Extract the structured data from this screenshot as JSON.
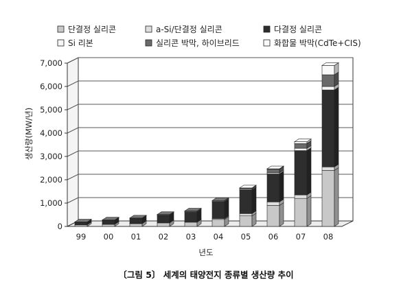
{
  "chart_data": {
    "type": "bar",
    "stacked": true,
    "three_d": true,
    "categories": [
      "99",
      "00",
      "01",
      "02",
      "03",
      "04",
      "05",
      "06",
      "07",
      "08"
    ],
    "series": [
      {
        "name": "단결정 실리콘",
        "color": "#c8c8c8",
        "values": [
          70,
          90,
          120,
          150,
          180,
          300,
          450,
          900,
          1200,
          2400
        ]
      },
      {
        "name": "a-Si/단결정 실리콘",
        "color": "#dedede",
        "values": [
          5,
          10,
          10,
          20,
          20,
          40,
          100,
          150,
          150,
          150
        ]
      },
      {
        "name": "다결정 실리콘",
        "color": "#2e2e2e",
        "values": [
          100,
          150,
          200,
          300,
          400,
          700,
          1000,
          1200,
          1900,
          3300
        ]
      },
      {
        "name": "Si 리본",
        "color": "#f5f5f5",
        "values": [
          5,
          5,
          10,
          10,
          20,
          20,
          30,
          50,
          100,
          150
        ]
      },
      {
        "name": "실리콘 박막, 하이브리드",
        "color": "#6a6a6a",
        "values": [
          10,
          20,
          20,
          30,
          40,
          50,
          60,
          150,
          200,
          500
        ]
      },
      {
        "name": "화합물 박막(CdTe+CIS)",
        "color": "#fafafa",
        "values": [
          0,
          0,
          0,
          0,
          0,
          0,
          10,
          20,
          80,
          400
        ]
      }
    ],
    "yticks": [
      "0",
      "1,000",
      "2,000",
      "3,000",
      "4,000",
      "5,000",
      "6,000",
      "7,000"
    ],
    "ylim": [
      0,
      7000
    ],
    "ylabel": "생산량(MW/년)",
    "xlabel": "년도",
    "grid": true,
    "legend_position": "top"
  },
  "caption": "〔그림 5〕 세계의 태양전지 종류별 생산량 추이"
}
